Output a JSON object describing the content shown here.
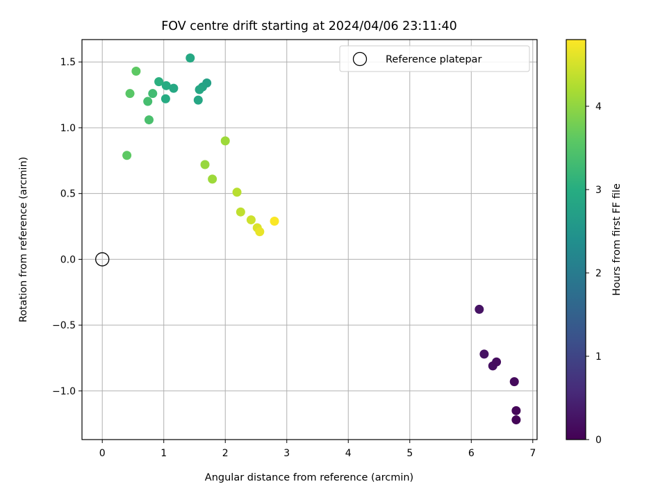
{
  "chart_data": {
    "type": "scatter",
    "title": "FOV centre drift starting at 2024/04/06 23:11:40",
    "xlabel": "Angular distance from reference (arcmin)",
    "ylabel": "Rotation from reference (arcmin)",
    "xlim": [
      -0.33,
      7.07
    ],
    "ylim": [
      -1.37,
      1.67
    ],
    "x_ticks": [
      0,
      1,
      2,
      3,
      4,
      5,
      6,
      7
    ],
    "x_tick_labels": [
      "0",
      "1",
      "2",
      "3",
      "4",
      "5",
      "6",
      "7"
    ],
    "y_ticks": [
      -1.0,
      -0.5,
      0.0,
      0.5,
      1.0,
      1.5
    ],
    "y_tick_labels": [
      "−1.0",
      "−0.5",
      "0.0",
      "0.5",
      "1.0",
      "1.5"
    ],
    "grid": true,
    "legend": {
      "position": "top-right",
      "label": "Reference platepar",
      "marker": "open-circle"
    },
    "reference_point": {
      "x": 0.0,
      "y": 0.0
    },
    "colorbar": {
      "label": "Hours from first FF file",
      "colormap": "viridis",
      "range": [
        0,
        4.8
      ],
      "ticks": [
        0,
        1,
        2,
        3,
        4
      ],
      "tick_labels": [
        "0",
        "1",
        "2",
        "3",
        "4"
      ]
    },
    "points": [
      {
        "x": 6.13,
        "y": -0.38,
        "hours": 0.25
      },
      {
        "x": 6.21,
        "y": -0.72,
        "hours": 0.22
      },
      {
        "x": 6.35,
        "y": -0.81,
        "hours": 0.2
      },
      {
        "x": 6.41,
        "y": -0.78,
        "hours": 0.17
      },
      {
        "x": 6.7,
        "y": -0.93,
        "hours": 0.12
      },
      {
        "x": 6.73,
        "y": -1.15,
        "hours": 0.08
      },
      {
        "x": 6.73,
        "y": -1.22,
        "hours": 0.05
      },
      {
        "x": 1.43,
        "y": 1.53,
        "hours": 2.9
      },
      {
        "x": 0.92,
        "y": 1.35,
        "hours": 3.05
      },
      {
        "x": 1.04,
        "y": 1.32,
        "hours": 2.95
      },
      {
        "x": 1.16,
        "y": 1.3,
        "hours": 2.9
      },
      {
        "x": 1.7,
        "y": 1.34,
        "hours": 2.75
      },
      {
        "x": 1.63,
        "y": 1.31,
        "hours": 2.8
      },
      {
        "x": 1.58,
        "y": 1.29,
        "hours": 2.85
      },
      {
        "x": 1.56,
        "y": 1.21,
        "hours": 2.85
      },
      {
        "x": 1.03,
        "y": 1.22,
        "hours": 2.95
      },
      {
        "x": 0.55,
        "y": 1.43,
        "hours": 3.6
      },
      {
        "x": 0.45,
        "y": 1.26,
        "hours": 3.55
      },
      {
        "x": 0.82,
        "y": 1.26,
        "hours": 3.3
      },
      {
        "x": 0.74,
        "y": 1.2,
        "hours": 3.35
      },
      {
        "x": 0.76,
        "y": 1.06,
        "hours": 3.4
      },
      {
        "x": 0.4,
        "y": 0.79,
        "hours": 3.6
      },
      {
        "x": 2.0,
        "y": 0.9,
        "hours": 4.1
      },
      {
        "x": 1.67,
        "y": 0.72,
        "hours": 4.05
      },
      {
        "x": 1.79,
        "y": 0.61,
        "hours": 4.1
      },
      {
        "x": 2.19,
        "y": 0.51,
        "hours": 4.3
      },
      {
        "x": 2.25,
        "y": 0.36,
        "hours": 4.35
      },
      {
        "x": 2.42,
        "y": 0.3,
        "hours": 4.45
      },
      {
        "x": 2.52,
        "y": 0.24,
        "hours": 4.55
      },
      {
        "x": 2.56,
        "y": 0.21,
        "hours": 4.65
      },
      {
        "x": 2.8,
        "y": 0.29,
        "hours": 4.78
      }
    ]
  }
}
